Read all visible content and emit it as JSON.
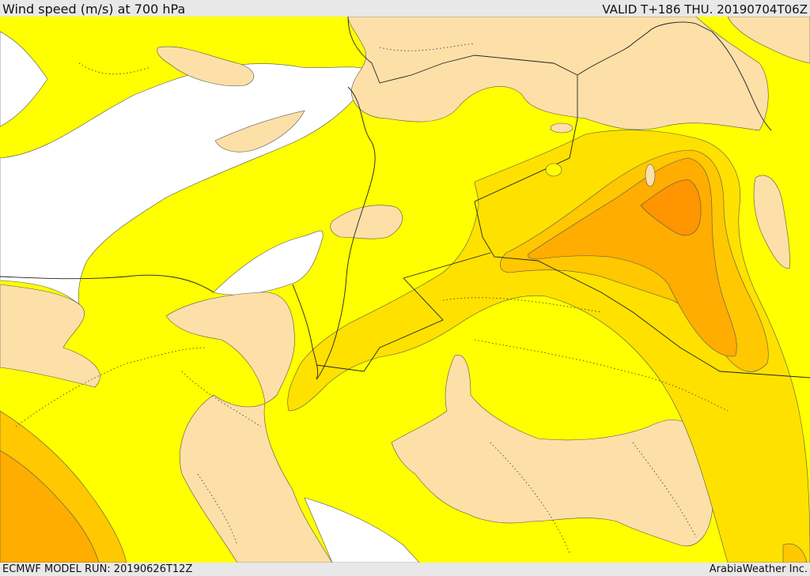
{
  "header": {
    "title": "Wind speed (m/s) at 700 hPa",
    "valid": "VALID T+186 THU. 20190704T06Z"
  },
  "footer": {
    "model_run": "ECMWF MODEL RUN: 20190626T12Z",
    "brand": "ArabiaWeather Inc."
  },
  "colors": {
    "sea_calm": "#ffffff",
    "land_calm": "#fde0a8",
    "band_yellow": "#ffff00",
    "band_gold": "#ffe100",
    "band_amber": "#ffc800",
    "band_orange": "#ffad00",
    "band_dark_orange": "#ff9500",
    "boundary": "#222222"
  }
}
